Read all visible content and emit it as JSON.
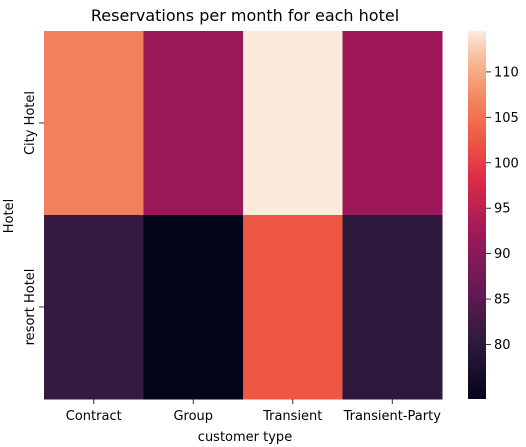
{
  "chart_data": {
    "type": "heatmap",
    "title": "Reservations per month for each hotel",
    "xlabel": "customer type",
    "ylabel": "Hotel",
    "x_categories": [
      "Contract",
      "Group",
      "Transient",
      "Transient-Party"
    ],
    "y_categories": [
      "City Hotel",
      "resort Hotel"
    ],
    "values": [
      [
        106.5,
        91.5,
        114.5,
        92.0
      ],
      [
        81.0,
        74.0,
        102.5,
        80.0
      ]
    ],
    "colorbar": {
      "min": 74.0,
      "max": 114.5,
      "ticks": [
        80,
        85,
        90,
        95,
        100,
        105,
        110
      ]
    },
    "colormap": "rocket",
    "grid": false
  }
}
